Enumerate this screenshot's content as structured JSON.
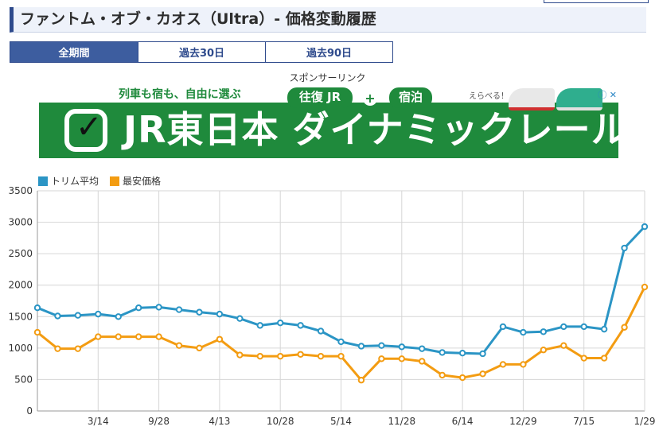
{
  "page": {
    "title": "ファントム・オブ・カオス（Ultra）- 価格変動履歴",
    "tabs": [
      {
        "label": "全期間",
        "active": true
      },
      {
        "label": "過去30日",
        "active": false
      },
      {
        "label": "過去90日",
        "active": false
      }
    ],
    "sponsor_label": "スポンサーリンク"
  },
  "ad": {
    "top_text": "列車も宿も、自由に選ぶ",
    "pill_left": "往復 JR",
    "plus": "+",
    "pill_right": "宿泊",
    "right_text": "えらべる！",
    "info_icons": "ⓘ ✕",
    "main_text": "JR東日本 ダイナミックレールパック",
    "colors": {
      "background": "#1f8a3c"
    }
  },
  "chart_data": {
    "type": "line",
    "legend_position": "top-left",
    "grid": true,
    "ylim": [
      0,
      3500
    ],
    "yticks": [
      0,
      500,
      1000,
      1500,
      2000,
      2500,
      3000,
      3500
    ],
    "xtick_labels": [
      "3/14",
      "9/28",
      "4/13",
      "10/28",
      "5/14",
      "11/28",
      "6/14",
      "12/29",
      "7/15",
      "1/29"
    ],
    "series": [
      {
        "name": "トリム平均",
        "color": "#2b95c5",
        "values": [
          1640,
          1510,
          1520,
          1540,
          1500,
          1640,
          1650,
          1610,
          1570,
          1540,
          1470,
          1360,
          1400,
          1360,
          1270,
          1100,
          1030,
          1040,
          1020,
          990,
          930,
          920,
          910,
          1340,
          1250,
          1260,
          1340,
          1340,
          1300,
          2590,
          2930
        ]
      },
      {
        "name": "最安価格",
        "color": "#f39c12",
        "values": [
          1250,
          990,
          990,
          1180,
          1180,
          1180,
          1180,
          1040,
          1000,
          1140,
          890,
          870,
          870,
          900,
          870,
          870,
          490,
          830,
          830,
          790,
          570,
          530,
          590,
          740,
          740,
          970,
          1040,
          840,
          840,
          1330,
          1970
        ]
      }
    ]
  }
}
